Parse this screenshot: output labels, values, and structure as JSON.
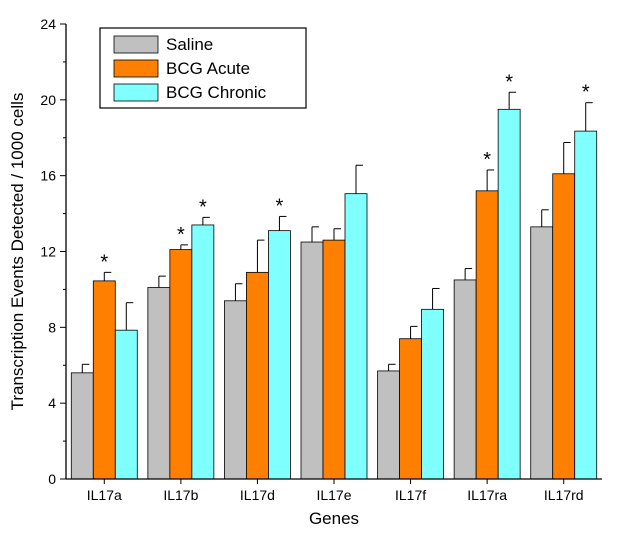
{
  "chart_data": {
    "type": "bar",
    "title": "",
    "xlabel": "Genes",
    "ylabel": "Transcription Events Detected / 1000 cells",
    "ylim": [
      0,
      24
    ],
    "yticks": [
      "0",
      "4",
      "8",
      "12",
      "16",
      "20",
      "24"
    ],
    "categories": [
      "IL17a",
      "IL17b",
      "IL17d",
      "IL17e",
      "IL17f",
      "IL17ra",
      "IL17rd"
    ],
    "series": [
      {
        "name": "Saline",
        "color": "#c0c0c0",
        "values": [
          5.6,
          10.1,
          9.4,
          12.5,
          5.7,
          10.5,
          13.3
        ],
        "errors": [
          0.45,
          0.6,
          0.9,
          0.8,
          0.35,
          0.6,
          0.9
        ]
      },
      {
        "name": "BCG Acute",
        "color": "#ff8000",
        "values": [
          10.45,
          12.1,
          10.9,
          12.6,
          7.4,
          15.2,
          16.1
        ],
        "errors": [
          0.45,
          0.25,
          1.7,
          0.6,
          0.65,
          1.1,
          1.65
        ]
      },
      {
        "name": "BCG Chronic",
        "color": "#80ffff",
        "values": [
          7.85,
          13.4,
          13.1,
          15.05,
          8.95,
          19.5,
          18.35
        ],
        "errors": [
          1.45,
          0.4,
          0.75,
          1.5,
          1.1,
          0.9,
          1.5
        ]
      }
    ],
    "significance_marker": "*",
    "significant": [
      [
        false,
        true,
        false
      ],
      [
        false,
        true,
        true
      ],
      [
        false,
        false,
        true
      ],
      [
        false,
        false,
        false
      ],
      [
        false,
        false,
        false
      ],
      [
        false,
        true,
        true
      ],
      [
        false,
        false,
        true
      ]
    ],
    "grid": false,
    "legend": {
      "position": "top-left",
      "entries": [
        "Saline",
        "BCG Acute",
        "BCG Chronic"
      ]
    }
  }
}
